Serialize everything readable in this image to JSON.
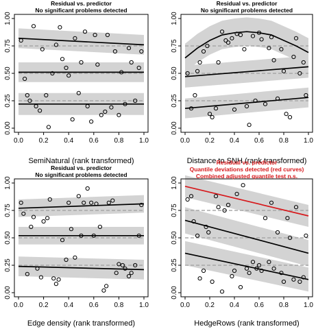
{
  "chart_data": [
    {
      "type": "scatter",
      "title_lines": [
        "Residual vs. predictor",
        "No significant problems detected"
      ],
      "title_color": "#000000",
      "xlabel": "SemiNatural (rank transformed)",
      "ylabel": "",
      "xlim": [
        0,
        1
      ],
      "ylim": [
        0,
        1
      ],
      "xticks": [
        "0.0",
        "0.2",
        "0.4",
        "0.6",
        "0.8",
        "1.0"
      ],
      "yticks": [
        "0.00",
        "0.25",
        "0.50",
        "0.75",
        "1.00"
      ],
      "expected_quantiles": [
        0.25,
        0.5,
        0.75
      ],
      "quantile_fits": [
        {
          "q": 0.25,
          "color": "#000000",
          "x": [
            0,
            1
          ],
          "y": [
            0.22,
            0.22
          ],
          "band_width": 0.1
        },
        {
          "q": 0.5,
          "color": "#000000",
          "x": [
            0,
            1
          ],
          "y": [
            0.51,
            0.51
          ],
          "band_width": 0.09
        },
        {
          "q": 0.75,
          "color": "#000000",
          "x": [
            0,
            0.5,
            1
          ],
          "y": [
            0.82,
            0.79,
            0.76
          ],
          "band_width": 0.09
        }
      ],
      "points": [
        [
          0.02,
          0.8
        ],
        [
          0.05,
          0.45
        ],
        [
          0.07,
          0.3
        ],
        [
          0.09,
          0.25
        ],
        [
          0.12,
          0.93
        ],
        [
          0.14,
          0.2
        ],
        [
          0.17,
          0.16
        ],
        [
          0.19,
          0.72
        ],
        [
          0.22,
          0.3
        ],
        [
          0.24,
          0.01
        ],
        [
          0.27,
          0.5
        ],
        [
          0.3,
          0.76
        ],
        [
          0.33,
          0.92
        ],
        [
          0.35,
          0.63
        ],
        [
          0.38,
          0.55
        ],
        [
          0.4,
          0.48
        ],
        [
          0.43,
          0.08
        ],
        [
          0.45,
          0.82
        ],
        [
          0.48,
          0.32
        ],
        [
          0.5,
          0.6
        ],
        [
          0.53,
          0.88
        ],
        [
          0.55,
          0.2
        ],
        [
          0.58,
          0.06
        ],
        [
          0.61,
          0.85
        ],
        [
          0.63,
          0.58
        ],
        [
          0.66,
          0.12
        ],
        [
          0.69,
          0.15
        ],
        [
          0.71,
          0.85
        ],
        [
          0.74,
          0.19
        ],
        [
          0.77,
          0.7
        ],
        [
          0.8,
          0.12
        ],
        [
          0.82,
          0.51
        ],
        [
          0.85,
          0.22
        ],
        [
          0.88,
          0.73
        ],
        [
          0.9,
          0.6
        ],
        [
          0.93,
          0.25
        ],
        [
          0.96,
          0.55
        ],
        [
          0.98,
          0.7
        ]
      ]
    },
    {
      "type": "scatter",
      "title_lines": [
        "Residual vs. predictor",
        "No significant problems detected"
      ],
      "title_color": "#000000",
      "xlabel": "Distance to SNH (rank transformed)",
      "ylabel": "",
      "xlim": [
        0,
        1
      ],
      "ylim": [
        0,
        1
      ],
      "xticks": [
        "0.0",
        "0.2",
        "0.4",
        "0.6",
        "0.8",
        "1.0"
      ],
      "yticks": [
        "0.00",
        "0.25",
        "0.50",
        "0.75",
        "1.00"
      ],
      "expected_quantiles": [
        0.25,
        0.5,
        0.75
      ],
      "quantile_fits": [
        {
          "q": 0.25,
          "color": "#000000",
          "x": [
            0,
            1
          ],
          "y": [
            0.18,
            0.28
          ],
          "band_width": 0.09
        },
        {
          "q": 0.5,
          "color": "#000000",
          "x": [
            0,
            1
          ],
          "y": [
            0.47,
            0.56
          ],
          "band_width": 0.1
        },
        {
          "q": 0.75,
          "color": "#000000",
          "x": [
            0,
            0.1,
            0.2,
            0.3,
            0.4,
            0.5,
            0.6,
            0.7,
            0.8,
            0.9,
            1.0
          ],
          "y": [
            0.64,
            0.73,
            0.8,
            0.85,
            0.87,
            0.88,
            0.87,
            0.85,
            0.8,
            0.75,
            0.69
          ],
          "band_width": 0.13
        }
      ],
      "points": [
        [
          0.02,
          0.5
        ],
        [
          0.05,
          0.18
        ],
        [
          0.08,
          0.3
        ],
        [
          0.1,
          0.52
        ],
        [
          0.12,
          0.6
        ],
        [
          0.15,
          0.7
        ],
        [
          0.18,
          0.75
        ],
        [
          0.2,
          0.13
        ],
        [
          0.22,
          0.1
        ],
        [
          0.25,
          0.18
        ],
        [
          0.27,
          0.6
        ],
        [
          0.3,
          0.88
        ],
        [
          0.33,
          0.8
        ],
        [
          0.35,
          0.78
        ],
        [
          0.38,
          0.82
        ],
        [
          0.4,
          0.17
        ],
        [
          0.42,
          0.86
        ],
        [
          0.45,
          0.85
        ],
        [
          0.48,
          0.72
        ],
        [
          0.5,
          0.2
        ],
        [
          0.52,
          0.03
        ],
        [
          0.55,
          0.84
        ],
        [
          0.57,
          0.25
        ],
        [
          0.6,
          0.87
        ],
        [
          0.62,
          0.81
        ],
        [
          0.65,
          0.22
        ],
        [
          0.68,
          0.73
        ],
        [
          0.7,
          0.83
        ],
        [
          0.72,
          0.62
        ],
        [
          0.75,
          0.27
        ],
        [
          0.78,
          0.72
        ],
        [
          0.8,
          0.52
        ],
        [
          0.82,
          0.13
        ],
        [
          0.85,
          0.1
        ],
        [
          0.88,
          0.65
        ],
        [
          0.9,
          0.82
        ],
        [
          0.93,
          0.5
        ],
        [
          0.96,
          0.6
        ],
        [
          0.98,
          0.3
        ]
      ]
    },
    {
      "type": "scatter",
      "title_lines": [
        "Residual vs. predictor",
        "No significant problems detected"
      ],
      "title_color": "#000000",
      "xlabel": "Edge density (rank transformed)",
      "ylabel": "",
      "xlim": [
        0,
        1
      ],
      "ylim": [
        0,
        1
      ],
      "xticks": [
        "0.0",
        "0.2",
        "0.4",
        "0.6",
        "0.8",
        "1.0"
      ],
      "yticks": [
        "0.00",
        "0.25",
        "0.50",
        "0.75",
        "1.00"
      ],
      "expected_quantiles": [
        0.25,
        0.5,
        0.75
      ],
      "quantile_fits": [
        {
          "q": 0.25,
          "color": "#000000",
          "x": [
            0,
            1
          ],
          "y": [
            0.24,
            0.21
          ],
          "band_width": 0.09
        },
        {
          "q": 0.5,
          "color": "#000000",
          "x": [
            0,
            1
          ],
          "y": [
            0.52,
            0.52
          ],
          "band_width": 0.08
        },
        {
          "q": 0.75,
          "color": "#000000",
          "x": [
            0,
            1
          ],
          "y": [
            0.77,
            0.81
          ],
          "band_width": 0.08
        }
      ],
      "points": [
        [
          0.02,
          0.82
        ],
        [
          0.04,
          0.72
        ],
        [
          0.07,
          0.17
        ],
        [
          0.1,
          0.6
        ],
        [
          0.12,
          0.69
        ],
        [
          0.15,
          0.22
        ],
        [
          0.18,
          0.14
        ],
        [
          0.2,
          0.65
        ],
        [
          0.23,
          0.68
        ],
        [
          0.25,
          0.85
        ],
        [
          0.28,
          0.13
        ],
        [
          0.3,
          0.08
        ],
        [
          0.32,
          0.12
        ],
        [
          0.35,
          0.48
        ],
        [
          0.38,
          0.3
        ],
        [
          0.4,
          0.82
        ],
        [
          0.42,
          0.58
        ],
        [
          0.45,
          0.32
        ],
        [
          0.48,
          0.88
        ],
        [
          0.5,
          0.52
        ],
        [
          0.52,
          0.82
        ],
        [
          0.55,
          0.95
        ],
        [
          0.58,
          0.82
        ],
        [
          0.6,
          0.52
        ],
        [
          0.62,
          0.81
        ],
        [
          0.65,
          0.6
        ],
        [
          0.68,
          0.02
        ],
        [
          0.7,
          0.06
        ],
        [
          0.72,
          0.82
        ],
        [
          0.75,
          0.84
        ],
        [
          0.78,
          0.18
        ],
        [
          0.8,
          0.26
        ],
        [
          0.83,
          0.25
        ],
        [
          0.85,
          0.22
        ],
        [
          0.88,
          0.15
        ],
        [
          0.9,
          0.18
        ],
        [
          0.93,
          0.25
        ],
        [
          0.96,
          0.52
        ],
        [
          0.98,
          0.8
        ]
      ]
    },
    {
      "type": "scatter",
      "title_lines": [
        "Residual vs. predictor",
        "Quantile deviations detected (red curves)",
        "Combined adjusted quantile test n.s."
      ],
      "title_color": "#d7191c",
      "xlabel": "HedgeRows (rank transformed)",
      "ylabel": "",
      "xlim": [
        0,
        1
      ],
      "ylim": [
        0,
        1
      ],
      "xticks": [
        "0.0",
        "0.2",
        "0.4",
        "0.6",
        "0.8",
        "1.0"
      ],
      "yticks": [
        "0.00",
        "0.25",
        "0.50",
        "0.75",
        "1.00"
      ],
      "expected_quantiles": [
        0.25,
        0.5,
        0.75
      ],
      "quantile_fits": [
        {
          "q": 0.25,
          "color": "#000000",
          "x": [
            0,
            1
          ],
          "y": [
            0.36,
            0.12
          ],
          "band_width": 0.11
        },
        {
          "q": 0.5,
          "color": "#000000",
          "x": [
            0,
            1
          ],
          "y": [
            0.66,
            0.36
          ],
          "band_width": 0.12
        },
        {
          "q": 0.75,
          "color": "#d7191c",
          "x": [
            0,
            1
          ],
          "y": [
            0.97,
            0.7
          ],
          "band_width": 0.1
        }
      ],
      "points": [
        [
          0.02,
          0.85
        ],
        [
          0.05,
          0.88
        ],
        [
          0.07,
          0.65
        ],
        [
          0.1,
          0.52
        ],
        [
          0.12,
          0.13
        ],
        [
          0.15,
          0.2
        ],
        [
          0.17,
          0.6
        ],
        [
          0.19,
          0.55
        ],
        [
          0.22,
          0.1
        ],
        [
          0.25,
          0.88
        ],
        [
          0.27,
          0.78
        ],
        [
          0.3,
          0.01
        ],
        [
          0.32,
          0.75
        ],
        [
          0.35,
          0.8
        ],
        [
          0.38,
          0.15
        ],
        [
          0.4,
          0.2
        ],
        [
          0.42,
          0.9
        ],
        [
          0.45,
          0.05
        ],
        [
          0.47,
          0.98
        ],
        [
          0.5,
          0.22
        ],
        [
          0.52,
          0.18
        ],
        [
          0.55,
          0.28
        ],
        [
          0.58,
          0.22
        ],
        [
          0.6,
          0.25
        ],
        [
          0.62,
          0.2
        ],
        [
          0.65,
          0.68
        ],
        [
          0.68,
          0.28
        ],
        [
          0.7,
          0.82
        ],
        [
          0.72,
          0.22
        ],
        [
          0.75,
          0.55
        ],
        [
          0.78,
          0.18
        ],
        [
          0.8,
          0.1
        ],
        [
          0.83,
          0.68
        ],
        [
          0.85,
          0.5
        ],
        [
          0.88,
          0.12
        ],
        [
          0.9,
          0.78
        ],
        [
          0.93,
          0.1
        ],
        [
          0.96,
          0.14
        ],
        [
          0.98,
          0.52
        ]
      ]
    }
  ]
}
